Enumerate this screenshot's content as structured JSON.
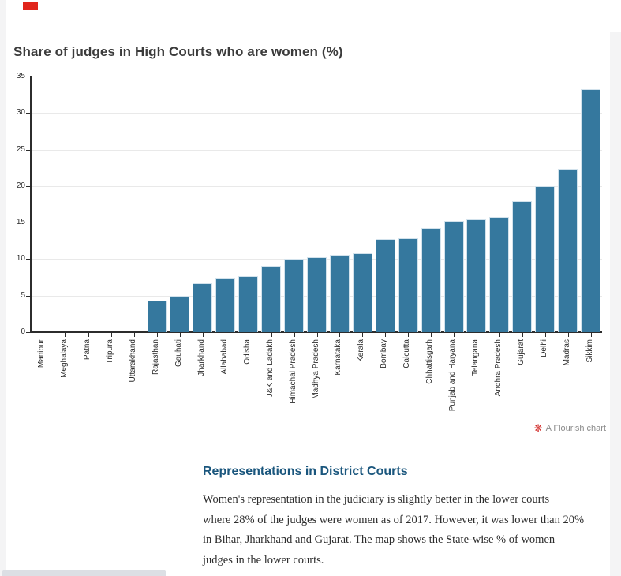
{
  "page": {
    "title": "Share of judges in High Courts who are women (%)",
    "attribution": "A Flourish chart",
    "attribution_icon": "flourish-flower-icon"
  },
  "chart_data": {
    "type": "bar",
    "title": "Share of judges in High Courts who are women (%)",
    "xlabel": "",
    "ylabel": "",
    "ylim": [
      0,
      35
    ],
    "yticks": [
      0,
      5,
      10,
      15,
      20,
      25,
      30,
      35
    ],
    "grid": "horizontal",
    "legend": "none",
    "orientation": "vertical",
    "categories": [
      "Manipur",
      "Meghalaya",
      "Patna",
      "Tripura",
      "Uttarakhand",
      "Rajasthan",
      "Gauhati",
      "Jharkhand",
      "Allahabad",
      "Odisha",
      "J&K and Ladakh",
      "Himachal Pradesh",
      "Madhya Pradesh",
      "Karnataka",
      "Kerala",
      "Bombay",
      "Calcutta",
      "Chhattisgarh",
      "Punjab and Haryana",
      "Telangana",
      "Andhra Pradesh",
      "Gujarat",
      "Delhi",
      "Madras",
      "Sikkim"
    ],
    "values": [
      0,
      0,
      0,
      0,
      0,
      4.3,
      5.0,
      6.7,
      7.4,
      7.7,
      9.1,
      10.0,
      10.3,
      10.6,
      10.8,
      12.7,
      12.9,
      14.3,
      15.2,
      15.4,
      15.8,
      17.9,
      20.0,
      22.4,
      33.3
    ]
  },
  "section": {
    "heading": "Representations in District Courts",
    "paragraph_lines": [
      "Women's representation in the judiciary is slightly better in the lower courts",
      "where 28% of the judges were women as of 2017. However, it was lower than 20%",
      "in Bihar, Jharkhand and Gujarat. The map shows the State-wise % of women",
      "judges in the lower courts."
    ]
  },
  "colors": {
    "bar": "#35789e",
    "title_text": "#3b3b3b",
    "heading_text": "#1a567d",
    "body_text": "#2d2d2d",
    "attribution_text": "#8c8c8c",
    "flourish_red": "#d22d2b",
    "axis": "#2c2c2c",
    "gridline": "#e9e9e9",
    "page_gutter": "#f4f4f5",
    "scrollbar_thumb": "#dcdfe4",
    "indicator_red": "#e1251b"
  },
  "icons": {
    "flourish_flower": "❋"
  }
}
